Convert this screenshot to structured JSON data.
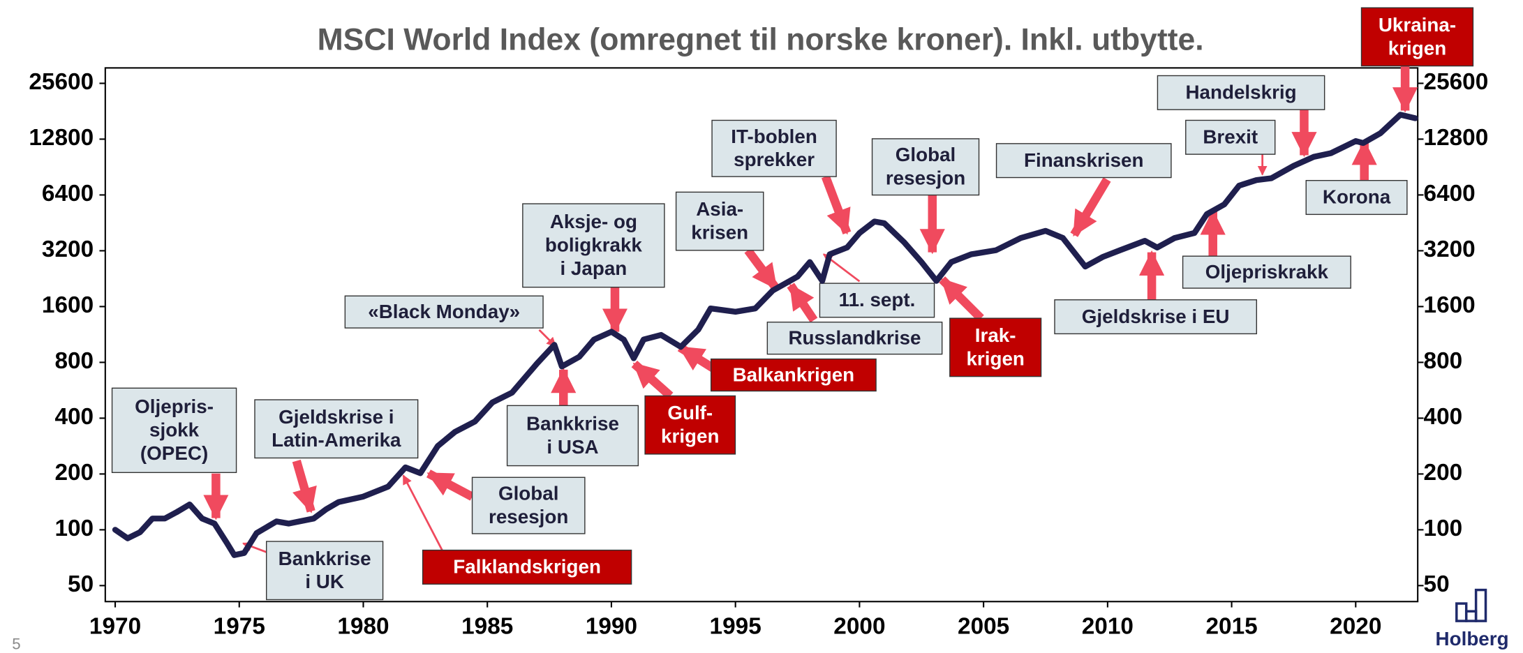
{
  "chart_data": {
    "type": "line",
    "title": "MSCI World Index (omregnet til norske kroner). Inkl. utbytte.",
    "log_scale": true,
    "grid": false,
    "color": "#1f1f4e",
    "x": [
      1970,
      1970.5,
      1971,
      1971.5,
      1972,
      1972.5,
      1973,
      1973.5,
      1974,
      1974.5,
      1974.8,
      1975.2,
      1975.7,
      1976.5,
      1977,
      1978,
      1978.5,
      1979,
      1980,
      1981,
      1981.7,
      1982.3,
      1983,
      1983.7,
      1984.5,
      1985.2,
      1986,
      1987,
      1987.7,
      1988,
      1988.7,
      1989.3,
      1990,
      1990.5,
      1990.9,
      1991.3,
      1992,
      1992.8,
      1993.5,
      1994,
      1995,
      1995.8,
      1996.5,
      1997.5,
      1998,
      1998.5,
      1998.8,
      1999.5,
      2000,
      2000.6,
      2001,
      2001.8,
      2002.5,
      2003.1,
      2003.7,
      2004.5,
      2005.5,
      2006.5,
      2007.5,
      2008.2,
      2009.1,
      2009.8,
      2010.5,
      2011.5,
      2012,
      2012.7,
      2013.5,
      2014,
      2014.7,
      2015.3,
      2016,
      2016.6,
      2017.5,
      2018.3,
      2019,
      2020,
      2020.3,
      2021,
      2021.8,
      2022.4
    ],
    "values": [
      100,
      90,
      97,
      115,
      115,
      125,
      137,
      115,
      108,
      85,
      73,
      75,
      96,
      111,
      108,
      115,
      129,
      141,
      151,
      171,
      217,
      202,
      283,
      338,
      384,
      486,
      550,
      788,
      995,
      760,
      857,
      1063,
      1170,
      1060,
      842,
      1063,
      1125,
      970,
      1200,
      1563,
      1500,
      1563,
      1950,
      2320,
      2780,
      2200,
      3060,
      3330,
      3990,
      4600,
      4500,
      3550,
      2780,
      2200,
      2780,
      3060,
      3220,
      3750,
      4100,
      3750,
      2630,
      2960,
      3220,
      3620,
      3330,
      3750,
      3990,
      5040,
      5690,
      7190,
      7700,
      7880,
      9190,
      10270,
      10750,
      12500,
      12200,
      13800,
      17340,
      16600
    ],
    "xlim": [
      1969.6,
      2022.5
    ],
    "xticks": [
      1970,
      1975,
      1980,
      1985,
      1990,
      1995,
      2000,
      2005,
      2010,
      2015,
      2020
    ],
    "ylim": [
      41,
      31000
    ],
    "yticks": [
      50,
      100,
      200,
      400,
      800,
      1600,
      3200,
      6400,
      12800,
      25600
    ],
    "annotations": [
      {
        "text": [
          "Oljepris-",
          "sjokk",
          "(OPEC)"
        ],
        "color": "#dce6ea",
        "text_color": "#1f1f3a"
      },
      {
        "text": [
          "Gjeldskrise i",
          "Latin-Amerika"
        ],
        "color": "#dce6ea",
        "text_color": "#1f1f3a"
      },
      {
        "text": [
          "Bankkrise",
          "i UK"
        ],
        "color": "#dce6ea",
        "text_color": "#1f1f3a"
      },
      {
        "text": [
          "Falklandskrigen"
        ],
        "color": "#c00000",
        "text_color": "#ffffff"
      },
      {
        "text": [
          "Global",
          "resesjon"
        ],
        "color": "#dce6ea",
        "text_color": "#1f1f3a"
      },
      {
        "text": [
          "«Black Monday»"
        ],
        "color": "#dce6ea",
        "text_color": "#1f1f3a"
      },
      {
        "text": [
          "Bankkrise",
          "i USA"
        ],
        "color": "#dce6ea",
        "text_color": "#1f1f3a"
      },
      {
        "text": [
          "Gulf-",
          "krigen"
        ],
        "color": "#c00000",
        "text_color": "#ffffff"
      },
      {
        "text": [
          "Balkankrigen"
        ],
        "color": "#c00000",
        "text_color": "#ffffff"
      },
      {
        "text": [
          "Aksje- og",
          "boligkrakk",
          "i Japan"
        ],
        "color": "#dce6ea",
        "text_color": "#1f1f3a"
      },
      {
        "text": [
          "Asia-",
          "krisen"
        ],
        "color": "#dce6ea",
        "text_color": "#1f1f3a"
      },
      {
        "text": [
          "Russlandkrise"
        ],
        "color": "#dce6ea",
        "text_color": "#1f1f3a"
      },
      {
        "text": [
          "IT-boblen",
          "sprekker"
        ],
        "color": "#dce6ea",
        "text_color": "#1f1f3a"
      },
      {
        "text": [
          "11. sept."
        ],
        "color": "#dce6ea",
        "text_color": "#1f1f3a"
      },
      {
        "text": [
          "Global",
          "resesjon"
        ],
        "color": "#dce6ea",
        "text_color": "#1f1f3a"
      },
      {
        "text": [
          "Irak-",
          "krigen"
        ],
        "color": "#c00000",
        "text_color": "#ffffff"
      },
      {
        "text": [
          "Finanskrisen"
        ],
        "color": "#dce6ea",
        "text_color": "#1f1f3a"
      },
      {
        "text": [
          "Gjeldskrise i EU"
        ],
        "color": "#dce6ea",
        "text_color": "#1f1f3a"
      },
      {
        "text": [
          "Oljepriskrakk"
        ],
        "color": "#dce6ea",
        "text_color": "#1f1f3a"
      },
      {
        "text": [
          "Brexit"
        ],
        "color": "#dce6ea",
        "text_color": "#1f1f3a"
      },
      {
        "text": [
          "Handelskrig"
        ],
        "color": "#dce6ea",
        "text_color": "#1f1f3a"
      },
      {
        "text": [
          "Korona"
        ],
        "color": "#dce6ea",
        "text_color": "#1f1f3a"
      },
      {
        "text": [
          "Ukraina-",
          "krigen"
        ],
        "color": "#c00000",
        "text_color": "#ffffff"
      }
    ]
  },
  "page_number": "5",
  "logo": "Holberg"
}
